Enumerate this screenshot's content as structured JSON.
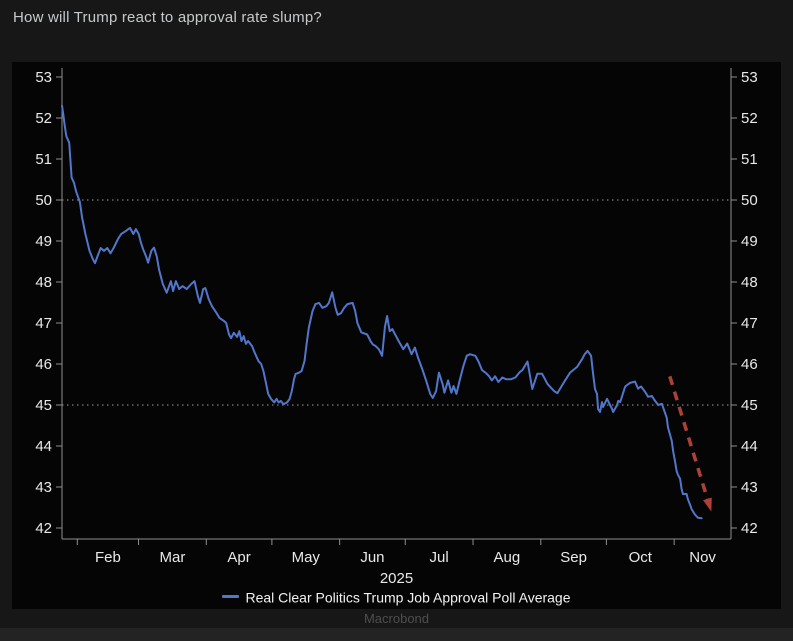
{
  "page": {
    "title": "How will Trump react to approval rate slump?",
    "watermark": "Macrobond"
  },
  "legend": {
    "items": [
      {
        "label": "Real Clear Politics Trump Job Approval Poll Average",
        "color": "#5276ca"
      }
    ]
  },
  "colors": {
    "background": "#171717",
    "panel": "#050505",
    "line": "#5276ca",
    "arrow": "#ad4137",
    "axis": "#8f8f8f",
    "tick_text": "#e9e9e9",
    "title_text": "#c6c9cb",
    "watermark_text": "#4e4e4e",
    "bottom_strip": "#232323"
  },
  "chart_data": {
    "type": "line",
    "title": "",
    "xlabel": "2025",
    "ylabel": "",
    "x_axis": {
      "label": "2025",
      "unit": "day-of-year-2025",
      "domain": [
        25,
        331
      ],
      "months": [
        {
          "label": "Feb",
          "start": 32,
          "mid": 46
        },
        {
          "label": "Mar",
          "start": 60,
          "mid": 75.5
        },
        {
          "label": "Apr",
          "start": 91,
          "mid": 106
        },
        {
          "label": "May",
          "start": 121,
          "mid": 136.5
        },
        {
          "label": "Jun",
          "start": 152,
          "mid": 167
        },
        {
          "label": "Jul",
          "start": 182,
          "mid": 197.5
        },
        {
          "label": "Aug",
          "start": 213,
          "mid": 228.5
        },
        {
          "label": "Sep",
          "start": 244,
          "mid": 259
        },
        {
          "label": "Oct",
          "start": 274,
          "mid": 289.5
        },
        {
          "label": "Nov",
          "start": 305,
          "mid": 318
        }
      ]
    },
    "y_axis": {
      "min": 42,
      "max": 53,
      "tick_step": 1,
      "ticks": [
        42,
        43,
        44,
        45,
        46,
        47,
        48,
        49,
        50,
        51,
        52,
        53
      ],
      "dotted_gridlines": [
        45,
        50
      ],
      "sides": [
        "left",
        "right"
      ]
    },
    "series": [
      {
        "name": "Real Clear Politics Trump Job Approval Poll Average",
        "color": "#5276ca",
        "points": [
          [
            25,
            52.3
          ],
          [
            25.7,
            52.05
          ],
          [
            26.3,
            51.8
          ],
          [
            27,
            51.55
          ],
          [
            28.3,
            51.4
          ],
          [
            29.4,
            50.55
          ],
          [
            30.5,
            50.42
          ],
          [
            31.5,
            50.2
          ],
          [
            33.2,
            49.95
          ],
          [
            34.2,
            49.57
          ],
          [
            35.7,
            49.17
          ],
          [
            37.6,
            48.76
          ],
          [
            39.1,
            48.56
          ],
          [
            40.1,
            48.46
          ],
          [
            41.6,
            48.68
          ],
          [
            42.7,
            48.83
          ],
          [
            44.2,
            48.76
          ],
          [
            45.7,
            48.83
          ],
          [
            47.2,
            48.7
          ],
          [
            48.6,
            48.83
          ],
          [
            50.6,
            49.05
          ],
          [
            52.1,
            49.17
          ],
          [
            54.1,
            49.24
          ],
          [
            56.1,
            49.32
          ],
          [
            57.6,
            49.17
          ],
          [
            58.8,
            49.29
          ],
          [
            60.1,
            49.17
          ],
          [
            61.1,
            48.96
          ],
          [
            62.1,
            48.8
          ],
          [
            63.4,
            48.63
          ],
          [
            64.4,
            48.47
          ],
          [
            65.9,
            48.76
          ],
          [
            67.1,
            48.84
          ],
          [
            68.3,
            48.63
          ],
          [
            69.4,
            48.3
          ],
          [
            71.1,
            47.95
          ],
          [
            72.9,
            47.74
          ],
          [
            74.8,
            48.02
          ],
          [
            75.8,
            47.78
          ],
          [
            77.1,
            48.02
          ],
          [
            78.6,
            47.83
          ],
          [
            80.1,
            47.9
          ],
          [
            82.1,
            47.83
          ],
          [
            84.1,
            47.95
          ],
          [
            85.6,
            48.02
          ],
          [
            87.1,
            47.66
          ],
          [
            88.1,
            47.49
          ],
          [
            89.6,
            47.83
          ],
          [
            90.6,
            47.85
          ],
          [
            92.1,
            47.58
          ],
          [
            93.6,
            47.41
          ],
          [
            95.6,
            47.25
          ],
          [
            97.1,
            47.12
          ],
          [
            99.1,
            47.05
          ],
          [
            100.1,
            47
          ],
          [
            101.4,
            46.72
          ],
          [
            102.3,
            46.63
          ],
          [
            103.6,
            46.76
          ],
          [
            105.1,
            46.66
          ],
          [
            106.1,
            46.8
          ],
          [
            107.1,
            46.56
          ],
          [
            108.1,
            46.68
          ],
          [
            109.1,
            46.49
          ],
          [
            110.1,
            46.56
          ],
          [
            111.9,
            46.44
          ],
          [
            113.1,
            46.28
          ],
          [
            114.9,
            46.07
          ],
          [
            116.1,
            46
          ],
          [
            117.1,
            45.83
          ],
          [
            118.1,
            45.59
          ],
          [
            119.3,
            45.27
          ],
          [
            120.6,
            45.15
          ],
          [
            122.1,
            45.06
          ],
          [
            123.1,
            45.15
          ],
          [
            124.1,
            45.06
          ],
          [
            125.1,
            45.1
          ],
          [
            126.3,
            45.02
          ],
          [
            127.9,
            45.06
          ],
          [
            129.1,
            45.15
          ],
          [
            130.1,
            45.34
          ],
          [
            131.1,
            45.63
          ],
          [
            131.9,
            45.76
          ],
          [
            133.1,
            45.78
          ],
          [
            134.6,
            45.83
          ],
          [
            135.9,
            46.07
          ],
          [
            136.9,
            46.49
          ],
          [
            137.9,
            46.88
          ],
          [
            139.6,
            47.29
          ],
          [
            140.9,
            47.46
          ],
          [
            142.6,
            47.49
          ],
          [
            144.1,
            47.37
          ],
          [
            145.9,
            47.41
          ],
          [
            147.1,
            47.49
          ],
          [
            148.6,
            47.75
          ],
          [
            150.1,
            47.37
          ],
          [
            151.1,
            47.2
          ],
          [
            152.6,
            47.24
          ],
          [
            154.1,
            47.37
          ],
          [
            155.6,
            47.46
          ],
          [
            157.9,
            47.49
          ],
          [
            159.1,
            47.29
          ],
          [
            160.1,
            47
          ],
          [
            161.9,
            46.77
          ],
          [
            164.6,
            46.72
          ],
          [
            166.1,
            46.56
          ],
          [
            167.1,
            46.48
          ],
          [
            168.4,
            46.44
          ],
          [
            169.9,
            46.36
          ],
          [
            171.4,
            46.2
          ],
          [
            172.7,
            46.9
          ],
          [
            173.7,
            47.17
          ],
          [
            174.9,
            46.8
          ],
          [
            176.1,
            46.85
          ],
          [
            177.6,
            46.7
          ],
          [
            179.1,
            46.55
          ],
          [
            181.1,
            46.36
          ],
          [
            182.9,
            46.5
          ],
          [
            184.9,
            46.24
          ],
          [
            186.4,
            46.4
          ],
          [
            187.9,
            46.15
          ],
          [
            189.6,
            45.9
          ],
          [
            191.6,
            45.59
          ],
          [
            193.4,
            45.27
          ],
          [
            194.6,
            45.17
          ],
          [
            196.1,
            45.34
          ],
          [
            197.4,
            45.79
          ],
          [
            199.1,
            45.51
          ],
          [
            199.9,
            45.3
          ],
          [
            201.6,
            45.6
          ],
          [
            203.1,
            45.3
          ],
          [
            204.1,
            45.46
          ],
          [
            205.4,
            45.27
          ],
          [
            206.9,
            45.6
          ],
          [
            208.6,
            45.95
          ],
          [
            210.1,
            46.2
          ],
          [
            211.6,
            46.24
          ],
          [
            214.1,
            46.2
          ],
          [
            215.6,
            46.05
          ],
          [
            217.1,
            45.85
          ],
          [
            218.9,
            45.78
          ],
          [
            220.4,
            45.7
          ],
          [
            221.6,
            45.6
          ],
          [
            223.1,
            45.7
          ],
          [
            224.6,
            45.56
          ],
          [
            226.4,
            45.67
          ],
          [
            228.1,
            45.63
          ],
          [
            230.4,
            45.63
          ],
          [
            232.4,
            45.67
          ],
          [
            234.3,
            45.8
          ],
          [
            235.6,
            45.85
          ],
          [
            237.9,
            46.06
          ],
          [
            240.1,
            45.39
          ],
          [
            242.4,
            45.76
          ],
          [
            244.6,
            45.76
          ],
          [
            247.1,
            45.51
          ],
          [
            250.1,
            45.34
          ],
          [
            251.6,
            45.29
          ],
          [
            255.1,
            45.6
          ],
          [
            257.4,
            45.79
          ],
          [
            260.6,
            45.93
          ],
          [
            262.9,
            46.12
          ],
          [
            264.1,
            46.24
          ],
          [
            265.4,
            46.32
          ],
          [
            267,
            46.2
          ],
          [
            267.9,
            45.78
          ],
          [
            268.8,
            45.39
          ],
          [
            269.7,
            45.27
          ],
          [
            270.2,
            44.9
          ],
          [
            271.1,
            44.83
          ],
          [
            272,
            45.07
          ],
          [
            272.5,
            44.95
          ],
          [
            274.3,
            45.15
          ],
          [
            274.8,
            45.1
          ],
          [
            276.6,
            44.9
          ],
          [
            277.1,
            44.83
          ],
          [
            278.9,
            45
          ],
          [
            279.4,
            45.1
          ],
          [
            280.3,
            45.07
          ],
          [
            282.6,
            45.45
          ],
          [
            284.8,
            45.54
          ],
          [
            287.1,
            45.57
          ],
          [
            288.5,
            45.4
          ],
          [
            289.9,
            45.45
          ],
          [
            291.7,
            45.32
          ],
          [
            293.1,
            45.2
          ],
          [
            294.8,
            45.22
          ],
          [
            296.3,
            45.1
          ],
          [
            297.7,
            45
          ],
          [
            299.4,
            45.03
          ],
          [
            300.8,
            44.81
          ],
          [
            301.6,
            44.69
          ],
          [
            302.2,
            44.45
          ],
          [
            303.1,
            44.28
          ],
          [
            303.9,
            44.12
          ],
          [
            304.5,
            43.88
          ],
          [
            305.4,
            43.63
          ],
          [
            306.1,
            43.39
          ],
          [
            306.7,
            43.3
          ],
          [
            307.7,
            43.2
          ],
          [
            308.4,
            42.95
          ],
          [
            309,
            42.83
          ],
          [
            310.7,
            42.83
          ],
          [
            311.3,
            42.7
          ],
          [
            312.2,
            42.58
          ],
          [
            313,
            42.46
          ],
          [
            314.5,
            42.33
          ],
          [
            315.9,
            42.25
          ],
          [
            317.6,
            42.24
          ]
        ]
      }
    ],
    "annotations": [
      {
        "type": "arrow",
        "style": "dashed",
        "color": "#ad4137",
        "from": [
          303,
          45.7
        ],
        "to": [
          322,
          42.4
        ]
      }
    ]
  }
}
